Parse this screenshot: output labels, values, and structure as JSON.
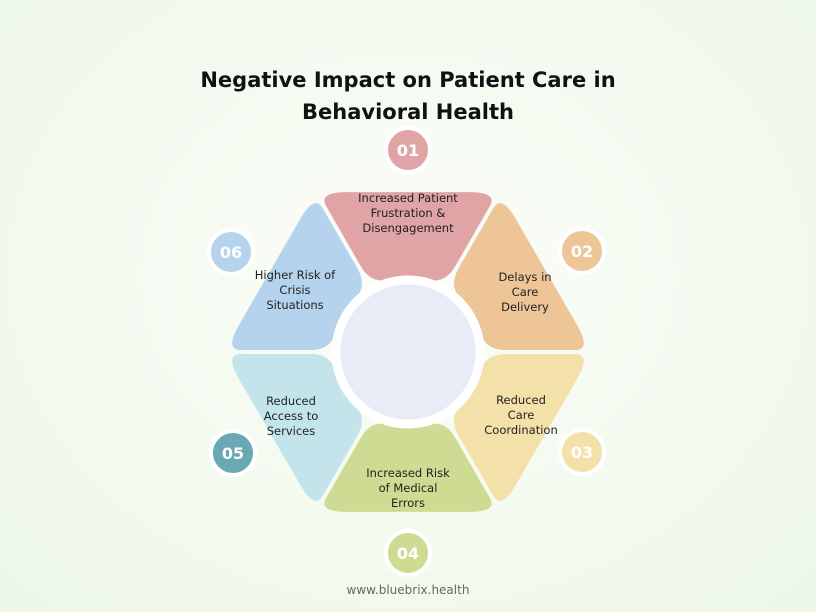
{
  "title": {
    "line1": "Negative Impact on Patient Care in",
    "line2": "Behavioral Health"
  },
  "segments": [
    {
      "number": "01",
      "label_lines": [
        "Increased Patient",
        "Frustration &",
        "Disengagement"
      ],
      "color": "#e0a4a7",
      "badge_color": "#e0a4a7"
    },
    {
      "number": "02",
      "label_lines": [
        "Delays in",
        "Care",
        "Delivery"
      ],
      "color": "#eec597",
      "badge_color": "#eec597"
    },
    {
      "number": "03",
      "label_lines": [
        "Reduced",
        "Care",
        "Coordination"
      ],
      "color": "#f4e1aa",
      "badge_color": "#f4e1aa"
    },
    {
      "number": "04",
      "label_lines": [
        "Increased Risk",
        "of Medical",
        "Errors"
      ],
      "color": "#cddc92",
      "badge_color": "#cddc92"
    },
    {
      "number": "05",
      "label_lines": [
        "Reduced",
        "Access to",
        "Services"
      ],
      "color": "#c3e4ea",
      "badge_color": "#6aa9b3"
    },
    {
      "number": "06",
      "label_lines": [
        "Higher Risk of",
        "Crisis",
        "Situations"
      ],
      "color": "#b6d3ee",
      "badge_color": "#b6d3ee"
    }
  ],
  "center_color": "#e9ecf6",
  "footer": "www.bluebrix.health"
}
